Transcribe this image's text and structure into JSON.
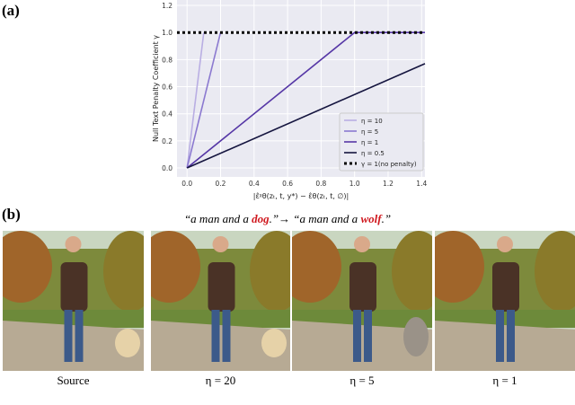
{
  "panel_a": {
    "label": "(a)"
  },
  "chart_data": {
    "type": "line",
    "ylabel": "Null Text Penalty Coefficient γ",
    "xlabel": "|ε̂ᵡθ(zₜ, t, y*) − ε̂θ(zₜ, t, ∅)|",
    "xlim": [
      -0.06,
      1.42
    ],
    "ylim": [
      -0.066,
      1.24
    ],
    "xticks": [
      {
        "value": 0,
        "label": "0.0"
      },
      {
        "value": 0.2,
        "label": "0.2"
      },
      {
        "value": 0.4,
        "label": "0.4"
      },
      {
        "value": 0.6,
        "label": "0.6"
      },
      {
        "value": 0.8,
        "label": "0.8"
      },
      {
        "value": 1,
        "label": "1.0"
      },
      {
        "value": 1.2,
        "label": "1.2"
      },
      {
        "value": 1.4,
        "label": "1.4"
      }
    ],
    "yticks": [
      {
        "value": 0,
        "label": "0.0"
      },
      {
        "value": 0.2,
        "label": "0.2"
      },
      {
        "value": 0.4,
        "label": "0.4"
      },
      {
        "value": 0.6,
        "label": "0.6"
      },
      {
        "value": 0.8,
        "label": "0.8"
      },
      {
        "value": 1,
        "label": "1.0"
      },
      {
        "value": 1.2,
        "label": "1.2"
      }
    ],
    "grid": true,
    "legend": "lower right",
    "series": [
      {
        "name": "η = 10",
        "color": "#b9aee3",
        "x": [
          0,
          0.1
        ],
        "values": [
          0,
          1
        ]
      },
      {
        "name": "η = 5",
        "color": "#8b79d0",
        "x": [
          0,
          0.2
        ],
        "values": [
          0,
          1
        ]
      },
      {
        "name": "η = 1",
        "color": "#5637a6",
        "x": [
          0,
          1,
          1.42
        ],
        "values": [
          0,
          1,
          1
        ]
      },
      {
        "name": "η = 0.5",
        "color": "#15153f",
        "x": [
          0,
          1.42
        ],
        "values": [
          0,
          0.77
        ]
      },
      {
        "name": "γ = 1(no penalty)",
        "color": "#000000",
        "dash": true,
        "x": [
          -0.06,
          1.42
        ],
        "values": [
          1,
          1
        ]
      }
    ]
  },
  "panel_b": {
    "label": "(b)",
    "caption": {
      "before": "“a man and a ",
      "w1": "dog",
      "mid": ".”→ “a man and a ",
      "w2": "wolf",
      "after": ".”"
    },
    "labels": [
      "Source",
      "η = 20",
      "η = 5",
      "η = 1"
    ]
  }
}
